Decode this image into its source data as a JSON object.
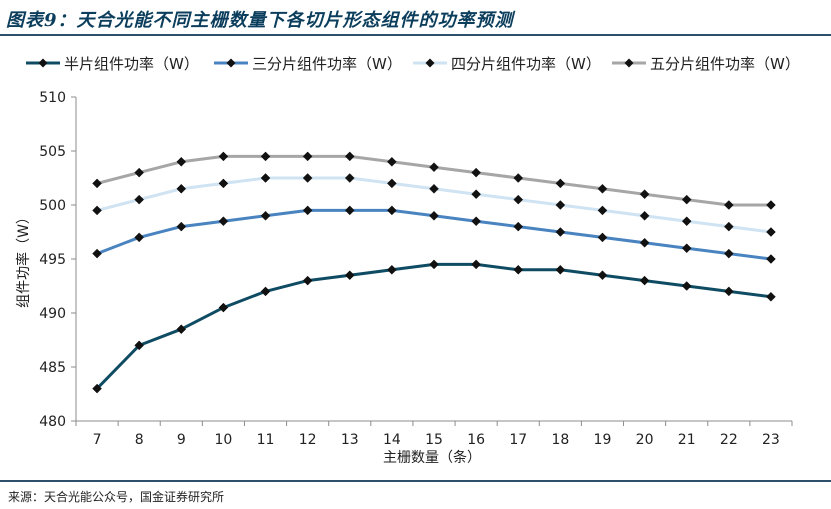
{
  "title": "图表9：天合光能不同主栅数量下各切片形态组件的功率预测",
  "source": "来源：天合光能公众号，国金证券研究所",
  "chart_data": {
    "type": "line",
    "xlabel": "主栅数量（条）",
    "ylabel": "组件功率（W）",
    "ylim": [
      480,
      510
    ],
    "yticks": [
      480,
      485,
      490,
      495,
      500,
      505,
      510
    ],
    "x": [
      7,
      8,
      9,
      10,
      11,
      12,
      13,
      14,
      15,
      16,
      17,
      18,
      19,
      20,
      21,
      22,
      23
    ],
    "legend_position": "top",
    "grid": false,
    "series": [
      {
        "name": "半片组件功率（W）",
        "color": "#0f4c64",
        "values": [
          483,
          487,
          488.5,
          490.5,
          492,
          493,
          493.5,
          494,
          494.5,
          494.5,
          494,
          494,
          493.5,
          493,
          492.5,
          492,
          491.5
        ]
      },
      {
        "name": "三分片组件功率（W）",
        "color": "#4a84c0",
        "values": [
          495.5,
          497,
          498,
          498.5,
          499,
          499.5,
          499.5,
          499.5,
          499,
          498.5,
          498,
          497.5,
          497,
          496.5,
          496,
          495.5,
          495
        ]
      },
      {
        "name": "四分片组件功率（W）",
        "color": "#cfe3f2",
        "values": [
          499.5,
          500.5,
          501.5,
          502,
          502.5,
          502.5,
          502.5,
          502,
          501.5,
          501,
          500.5,
          500,
          499.5,
          499,
          498.5,
          498,
          497.5
        ]
      },
      {
        "name": "五分片组件功率（W）",
        "color": "#a6a6a6",
        "values": [
          502,
          503,
          504,
          504.5,
          504.5,
          504.5,
          504.5,
          504,
          503.5,
          503,
          502.5,
          502,
          501.5,
          501,
          500.5,
          500,
          500
        ]
      }
    ]
  }
}
